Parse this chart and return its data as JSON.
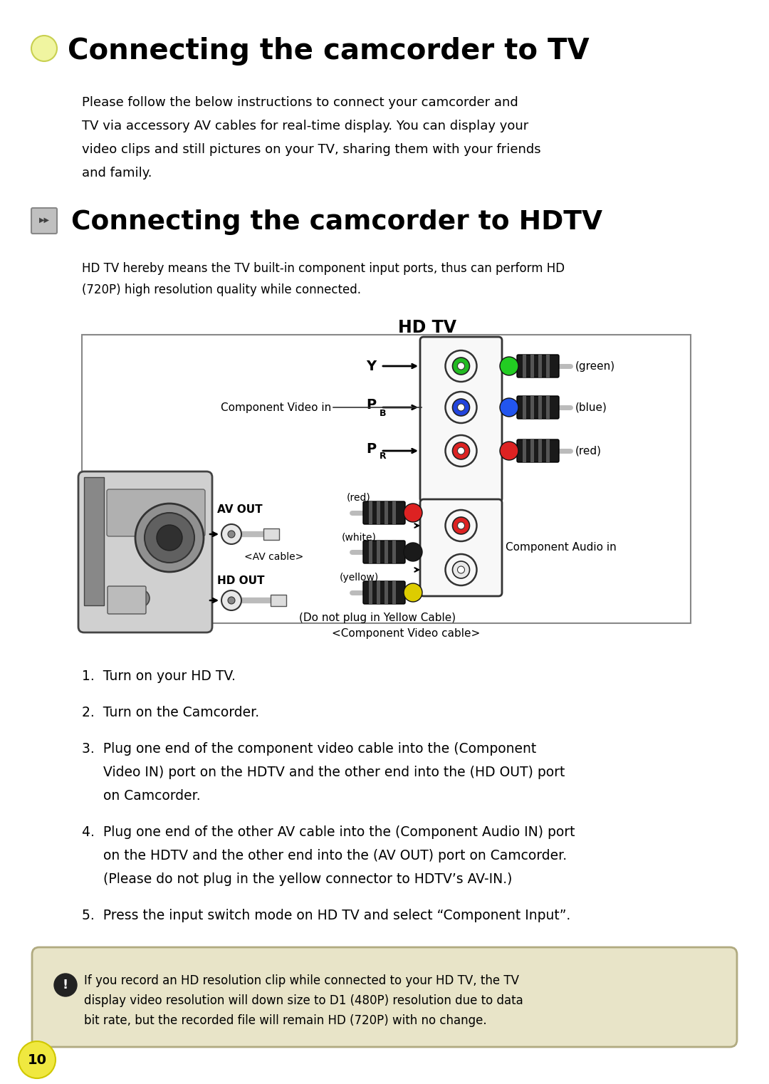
{
  "bg_color": "#ffffff",
  "title1": "Connecting the camcorder to TV",
  "title2": "Connecting the camcorder to HDTV",
  "bullet1_color": "#f0f5a0",
  "para1_line1": "Please follow the below instructions to connect your camcorder and",
  "para1_line2": "TV via accessory AV cables for real-time display. You can display your",
  "para1_line3": "video clips and still pictures on your TV, sharing them with your friends",
  "para1_line4": "and family.",
  "hdtv_desc_line1": "HD TV hereby means the TV built-in component input ports, thus can perform HD",
  "hdtv_desc_line2": "(720P) high resolution quality while connected.",
  "hdtv_label": "HD TV",
  "step1": "1.  Turn on your HD TV.",
  "step2": "2.  Turn on the Camcorder.",
  "step3_line1": "3.  Plug one end of the component video cable into the (Component",
  "step3_line2": "     Video IN) port on the HDTV and the other end into the (HD OUT) port",
  "step3_line3": "     on Camcorder.",
  "step4_line1": "4.  Plug one end of the other AV cable into the (Component Audio IN) port",
  "step4_line2": "     on the HDTV and the other end into the (AV OUT) port on Camcorder.",
  "step4_line3": "     (Please do not plug in the yellow connector to HDTV’s AV-IN.)",
  "step5": "5.  Press the input switch mode on HD TV and select “Component Input”.",
  "note": "If you record an HD resolution clip while connected to your HD TV, the TV\ndisplay video resolution will down size to D1 (480P) resolution due to data\nbit rate, but the recorded file will remain HD (720P) with no change.",
  "note_bg": "#e8e4c8",
  "note_border": "#b0aa80",
  "page_num": "10",
  "page_circle_color": "#f0e840"
}
